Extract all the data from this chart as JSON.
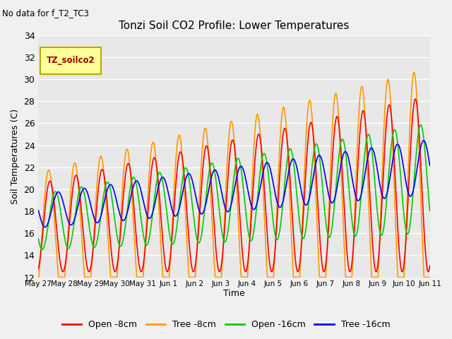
{
  "title": "Tonzi Soil CO2 Profile: Lower Temperatures",
  "subtitle": "No data for f_T2_TC3",
  "ylabel": "Soil Temperatures (C)",
  "xlabel": "Time",
  "ylim": [
    12,
    34
  ],
  "yticks": [
    12,
    14,
    16,
    18,
    20,
    22,
    24,
    26,
    28,
    30,
    32,
    34
  ],
  "plot_bg_color": "#e8e8e8",
  "fig_bg_color": "#f0f0f0",
  "legend_label": "TZ_soilco2",
  "legend_box_color": "#ffff99",
  "legend_box_border": "#bbaa00",
  "series_labels": [
    "Open -8cm",
    "Tree -8cm",
    "Open -16cm",
    "Tree -16cm"
  ],
  "series_colors": [
    "#ff0000",
    "#ff9900",
    "#00cc00",
    "#0000ff"
  ],
  "line_width": 1.2,
  "x_tick_labels": [
    "May 27",
    "May 28",
    "May 29",
    "May 30",
    "May 31",
    "Jun 1",
    "Jun 2",
    "Jun 3",
    "Jun 4",
    "Jun 5",
    "Jun 6",
    "Jun 7",
    "Jun 8",
    "Jun 9",
    "Jun 10",
    "Jun 11"
  ],
  "n_days": 15,
  "n_per_day": 144
}
